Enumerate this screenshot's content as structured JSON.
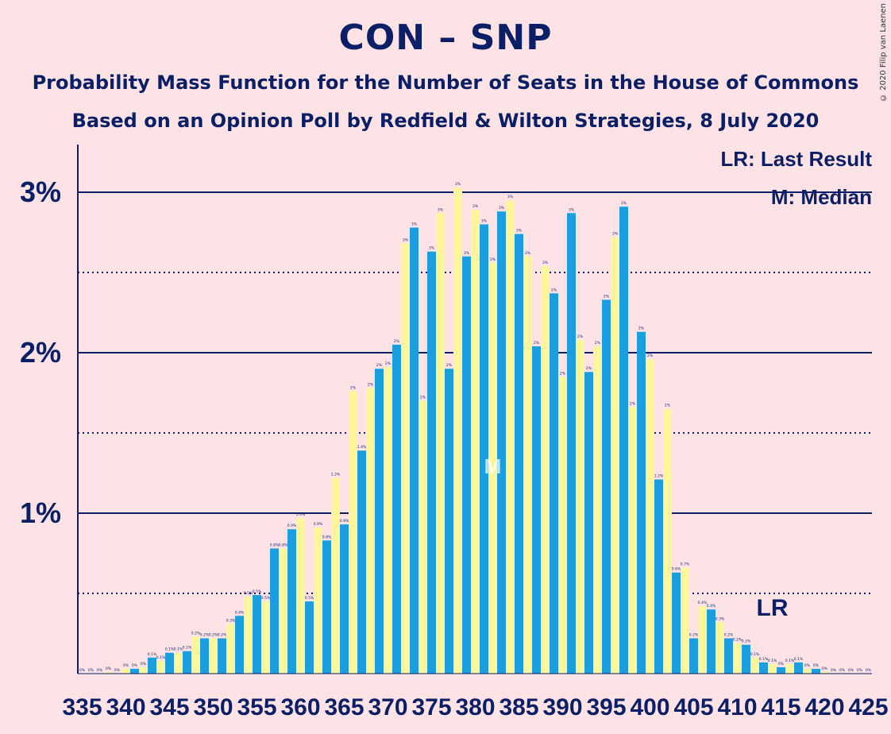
{
  "header": {
    "title": "CON – SNP",
    "subtitle1": "Probability Mass Function for the Number of Seats in the House of Commons",
    "subtitle2": "Based on an Opinion Poll by Redfield & Wilton Strategies, 8 July 2020",
    "copyright": "© 2020 Filip van Laenen"
  },
  "colors": {
    "background": "#fde3e6",
    "bar_blue": "#1a9ee0",
    "bar_yellow": "#fff59a",
    "axis": "#0b1f66"
  },
  "chart_data": {
    "type": "bar",
    "title": "CON – SNP",
    "xlabel": "",
    "ylabel": "",
    "ylim": [
      0,
      3.3
    ],
    "y_ticks": [
      "1%",
      "2%",
      "3%"
    ],
    "x_tick_labels": [
      "335",
      "340",
      "345",
      "350",
      "355",
      "360",
      "365",
      "370",
      "375",
      "380",
      "385",
      "390",
      "395",
      "400",
      "405",
      "410",
      "415",
      "420",
      "425"
    ],
    "legend": [
      "LR: Last Result",
      "M: Median"
    ],
    "legend_position": "top-right",
    "last_result": {
      "seat": 414,
      "label": "LR"
    },
    "median": {
      "seat": 382,
      "label": "M"
    },
    "seats": [
      335,
      336,
      337,
      338,
      339,
      340,
      341,
      342,
      343,
      344,
      345,
      346,
      347,
      348,
      349,
      350,
      351,
      352,
      353,
      354,
      355,
      356,
      357,
      358,
      359,
      360,
      361,
      362,
      363,
      364,
      365,
      366,
      367,
      368,
      369,
      370,
      371,
      372,
      373,
      374,
      375,
      376,
      377,
      378,
      379,
      380,
      381,
      382,
      383,
      384,
      385,
      386,
      387,
      388,
      389,
      390,
      391,
      392,
      393,
      394,
      395,
      396,
      397,
      398,
      399,
      400,
      401,
      402,
      403,
      404,
      405,
      406,
      407,
      408,
      409,
      410,
      411,
      412,
      413,
      414,
      415,
      416,
      417,
      418,
      419,
      420,
      421,
      422,
      423,
      424,
      425
    ],
    "values": [
      0.0,
      0.0,
      0.0,
      0.01,
      0.0,
      0.03,
      0.03,
      0.04,
      0.1,
      0.08,
      0.13,
      0.13,
      0.14,
      0.23,
      0.22,
      0.22,
      0.22,
      0.31,
      0.36,
      0.48,
      0.49,
      0.45,
      0.78,
      0.78,
      0.9,
      0.97,
      0.45,
      0.91,
      0.83,
      1.22,
      0.93,
      1.76,
      1.39,
      1.78,
      1.9,
      1.91,
      2.05,
      2.68,
      2.78,
      1.7,
      2.63,
      2.87,
      1.9,
      3.03,
      2.6,
      2.89,
      2.8,
      2.56,
      2.88,
      2.95,
      2.74,
      2.6,
      2.04,
      2.54,
      2.37,
      1.85,
      2.87,
      2.08,
      1.88,
      2.04,
      2.33,
      2.72,
      2.91,
      1.66,
      2.13,
      1.96,
      1.21,
      1.65,
      0.63,
      0.66,
      0.22,
      0.42,
      0.4,
      0.32,
      0.22,
      0.19,
      0.18,
      0.1,
      0.07,
      0.06,
      0.04,
      0.06,
      0.07,
      0.03,
      0.03,
      0.01,
      0.0,
      0.0,
      0.0,
      0.0,
      0.0
    ],
    "value_labels": [
      "0%",
      "0%",
      "0%",
      "0%",
      "0%",
      "0%",
      "0%",
      "0%",
      "0.1%",
      "0.1%",
      "0.1%",
      "0.1%",
      "0.1%",
      "0.2%",
      "0.2%",
      "0.2%",
      "0.2%",
      "0.3%",
      "0.4%",
      "0.5%",
      "0.5%",
      "0.5%",
      "0.8%",
      "0.8%",
      "0.9%",
      "1.0%",
      "0.5%",
      "0.9%",
      "0.8%",
      "1.2%",
      "0.9%",
      "2%",
      "1.4%",
      "2%",
      "2%",
      "2%",
      "2%",
      "3%",
      "3%",
      "2%",
      "3%",
      "3%",
      "2%",
      "3%",
      "3%",
      "3%",
      "3%",
      "3%",
      "3%",
      "3%",
      "3%",
      "3%",
      "2%",
      "3%",
      "2%",
      "2%",
      "3%",
      "2%",
      "2%",
      "2%",
      "2%",
      "3%",
      "3%",
      "2%",
      "2%",
      "2%",
      "1.2%",
      "2%",
      "0.6%",
      "0.7%",
      "0.2%",
      "0.4%",
      "0.4%",
      "0.3%",
      "0.2%",
      "0.2%",
      "0.2%",
      "0.1%",
      "0.1%",
      "0.1%",
      "0%",
      "0.1%",
      "0.1%",
      "0%",
      "0%",
      "0%",
      "0%",
      "0%",
      "0%",
      "0%",
      "0%"
    ]
  }
}
